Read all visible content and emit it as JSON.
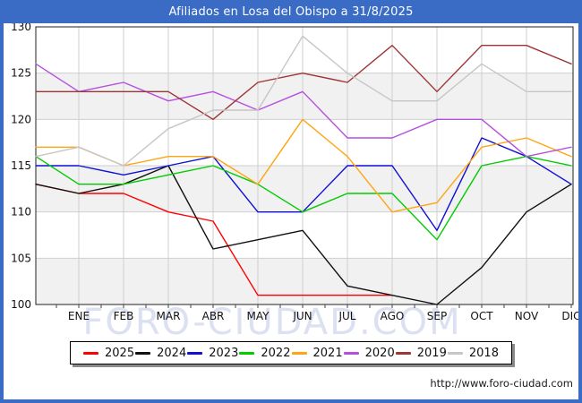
{
  "window": {
    "title": "Afiliados en Losa del Obispo a 31/8/2025"
  },
  "watermark": "FORO-CIUDAD.COM",
  "footer": {
    "url": "http://www.foro-ciudad.com"
  },
  "colors": {
    "titlebar": "#3a6bc5",
    "frame_border": "#3a6bc5",
    "plot_band": "#f1f1f1",
    "gridline": "#cfcfcf",
    "axis": "#222222",
    "watermark": "#dce1f2"
  },
  "chart_data": {
    "type": "line",
    "title": "Afiliados en Losa del Obispo a 31/8/2025",
    "categories": [
      "ENE",
      "FEB",
      "MAR",
      "ABR",
      "MAY",
      "JUN",
      "JUL",
      "AGO",
      "SEP",
      "OCT",
      "NOV",
      "DIC"
    ],
    "first_point_note": "each series has a leading value drawn at the left axis edge before ENE",
    "ylim": [
      100,
      130
    ],
    "y_ticks": [
      100,
      105,
      110,
      115,
      120,
      125,
      130
    ],
    "grid": true,
    "legend_position": "bottom",
    "series": [
      {
        "name": "2025",
        "color": "#ff0000",
        "values": [
          113,
          112,
          112,
          110,
          109,
          101,
          101,
          101,
          101
        ]
      },
      {
        "name": "2024",
        "color": "#111111",
        "values": [
          113,
          112,
          113,
          115,
          106,
          107,
          108,
          102,
          101,
          100,
          104,
          110,
          113
        ]
      },
      {
        "name": "2023",
        "color": "#0f0fd6",
        "values": [
          115,
          115,
          114,
          115,
          116,
          110,
          110,
          115,
          115,
          108,
          118,
          116,
          113
        ]
      },
      {
        "name": "2022",
        "color": "#00cc00",
        "values": [
          116,
          113,
          113,
          114,
          115,
          113,
          110,
          112,
          112,
          107,
          115,
          116,
          115
        ]
      },
      {
        "name": "2021",
        "color": "#ffa513",
        "values": [
          117,
          117,
          115,
          116,
          116,
          113,
          120,
          116,
          110,
          111,
          117,
          118,
          116
        ]
      },
      {
        "name": "2020",
        "color": "#b44fe0",
        "values": [
          126,
          123,
          124,
          122,
          123,
          121,
          123,
          118,
          118,
          120,
          120,
          116,
          117
        ]
      },
      {
        "name": "2019",
        "color": "#9e3434",
        "values": [
          123,
          123,
          123,
          123,
          120,
          124,
          125,
          124,
          128,
          123,
          128,
          128,
          126
        ]
      },
      {
        "name": "2018",
        "color": "#c6c6c6",
        "values": [
          116,
          117,
          115,
          119,
          121,
          121,
          129,
          125,
          122,
          122,
          126,
          123,
          123
        ]
      }
    ]
  }
}
